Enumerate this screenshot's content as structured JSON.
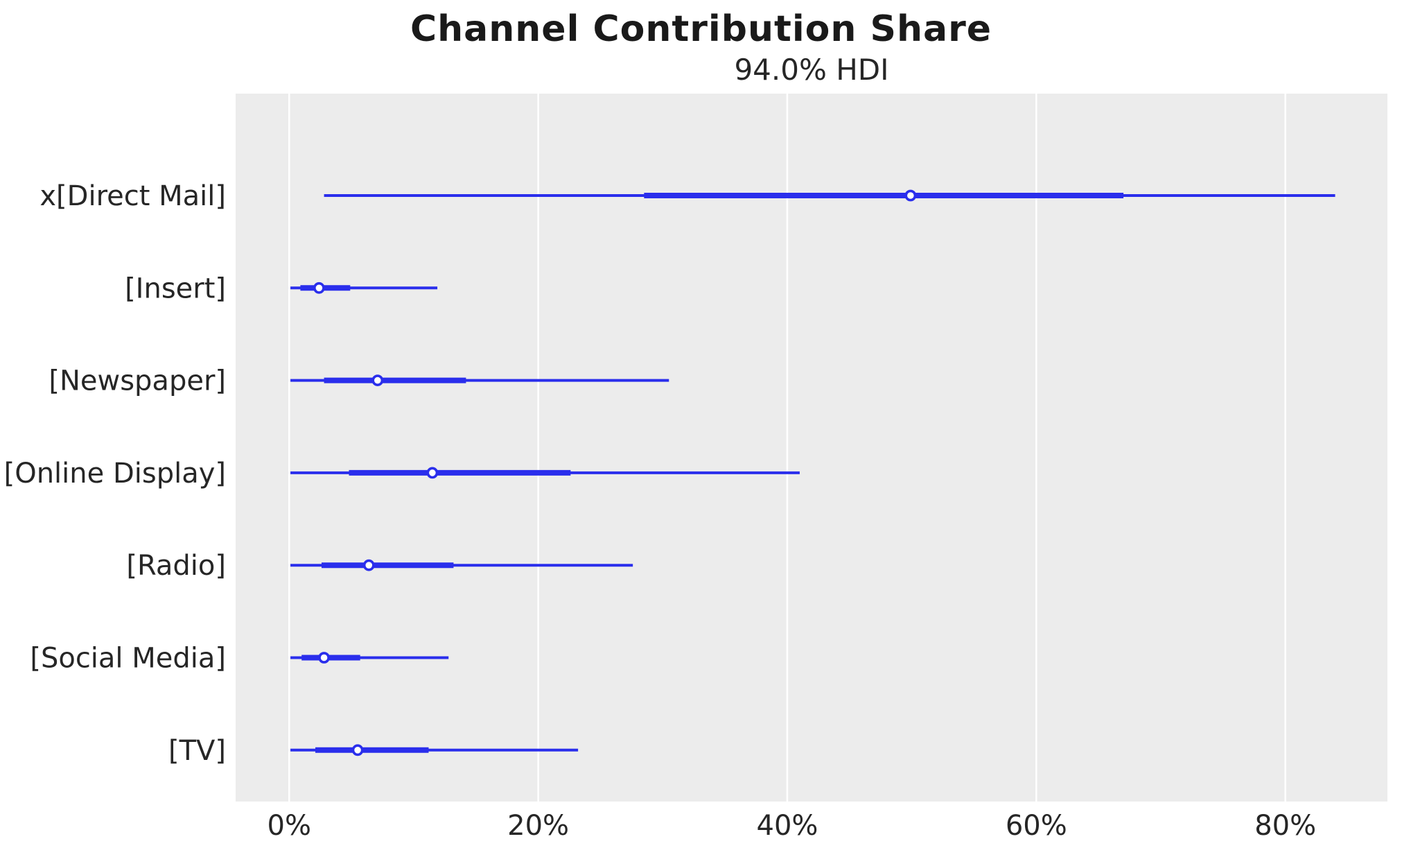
{
  "figure": {
    "suptitle": "Channel Contribution Share",
    "axes_title": "94.0% HDI"
  },
  "chart_data": {
    "type": "forest",
    "title": "Channel Contribution Share",
    "subtitle": "94.0% HDI",
    "xlabel": "",
    "ylabel": "",
    "x_unit": "percent",
    "xlim": [
      -4.3,
      88.2
    ],
    "x_ticks": [
      0,
      20,
      40,
      60,
      80
    ],
    "x_tick_labels": [
      "0%",
      "20%",
      "40%",
      "60%",
      "80%"
    ],
    "grid": "vertical-white-lines",
    "legend": "none",
    "rows": [
      {
        "label": "x[Direct Mail]",
        "hdi_94": [
          2.8,
          84.0
        ],
        "inner_interval": [
          28.5,
          67.0
        ],
        "point": 49.9
      },
      {
        "label": "[Insert]",
        "hdi_94": [
          0.1,
          11.9
        ],
        "inner_interval": [
          0.9,
          4.9
        ],
        "point": 2.4
      },
      {
        "label": "[Newspaper]",
        "hdi_94": [
          0.1,
          30.5
        ],
        "inner_interval": [
          2.8,
          14.2
        ],
        "point": 7.1
      },
      {
        "label": "[Online Display]",
        "hdi_94": [
          0.1,
          41.0
        ],
        "inner_interval": [
          4.8,
          22.6
        ],
        "point": 11.5
      },
      {
        "label": "[Radio]",
        "hdi_94": [
          0.1,
          27.6
        ],
        "inner_interval": [
          2.6,
          13.2
        ],
        "point": 6.4
      },
      {
        "label": "[Social Media]",
        "hdi_94": [
          0.1,
          12.8
        ],
        "inner_interval": [
          1.0,
          5.7
        ],
        "point": 2.8
      },
      {
        "label": "[TV]",
        "hdi_94": [
          0.1,
          23.2
        ],
        "inner_interval": [
          2.1,
          11.2
        ],
        "point": 5.5
      }
    ],
    "colors": {
      "interval": "#2a2eec",
      "marker_fill": "#ffffff",
      "plot_background": "#ececec",
      "gridline": "#ffffff",
      "text": "#262626",
      "figure_background": "#ffffff"
    }
  }
}
